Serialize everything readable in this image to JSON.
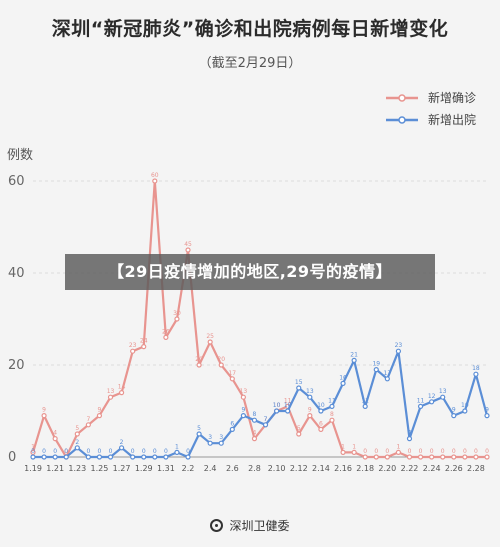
{
  "title": "深圳“新冠肺炎”确诊和出院病例每日新增变化",
  "subtitle": "（截至2月29日）",
  "banner": "【29日疫情增加的地区,29号的疫情】",
  "footer": "深圳卫健委",
  "chart_data": {
    "type": "line",
    "ylabel": "例数",
    "ylim": [
      0,
      60
    ],
    "yticks": [
      0,
      20,
      40,
      60
    ],
    "grid": true,
    "legend_position": "top-right",
    "x": [
      "1.19",
      "1.20",
      "1.21",
      "1.22",
      "1.23",
      "1.24",
      "1.25",
      "1.26",
      "1.27",
      "1.28",
      "1.29",
      "1.30",
      "1.31",
      "2.1",
      "2.2",
      "2.3",
      "2.4",
      "2.5",
      "2.6",
      "2.7",
      "2.8",
      "2.9",
      "2.10",
      "2.11",
      "2.12",
      "2.13",
      "2.14",
      "2.15",
      "2.16",
      "2.17",
      "2.18",
      "2.19",
      "2.20",
      "2.21",
      "2.22",
      "2.23",
      "2.24",
      "2.25",
      "2.26",
      "2.27",
      "2.28",
      "2.29"
    ],
    "xtick_labels": [
      "1.19",
      "1.21",
      "1.23",
      "1.25",
      "1.27",
      "1.29",
      "1.31",
      "2.2",
      "2.4",
      "2.6",
      "2.8",
      "2.10",
      "2.12",
      "2.14",
      "2.16",
      "2.18",
      "2.20",
      "2.22",
      "2.24",
      "2.26",
      "2.28"
    ],
    "series": [
      {
        "name": "新增确诊",
        "color": "#e8948f",
        "values": [
          1,
          9,
          4,
          0,
          5,
          7,
          9,
          13,
          14,
          23,
          24,
          60,
          26,
          30,
          45,
          20,
          25,
          20,
          17,
          13,
          4,
          7,
          10,
          11,
          5,
          9,
          6,
          8,
          1,
          1,
          0,
          0,
          0,
          1,
          0,
          0,
          0,
          0,
          0,
          0,
          0,
          0
        ]
      },
      {
        "name": "新增出院",
        "color": "#5b8ed6",
        "values": [
          0,
          0,
          0,
          0,
          2,
          0,
          0,
          0,
          2,
          0,
          0,
          0,
          0,
          1,
          0,
          5,
          3,
          3,
          6,
          9,
          8,
          7,
          10,
          10,
          15,
          13,
          10,
          11,
          16,
          21,
          11,
          19,
          17,
          23,
          4,
          11,
          12,
          13,
          9,
          10,
          18,
          9
        ]
      }
    ],
    "data_labels": {
      "新增确诊": [
        "1",
        "9",
        "4",
        "0",
        "5",
        "7",
        "9",
        "13",
        "14",
        "23",
        "24",
        "60",
        "26",
        "30",
        "45",
        "20",
        "25",
        "20",
        "17",
        "13",
        "4",
        "7",
        "10",
        "11",
        "5",
        "9",
        "6",
        "8",
        "1",
        "1",
        "0",
        "0",
        "0",
        "1",
        "0",
        "0",
        "0",
        "0",
        "0",
        "0",
        "0",
        "0"
      ],
      "新增出院": [
        "0",
        "0",
        "0",
        "0",
        "2",
        "0",
        "0",
        "0",
        "2",
        "0",
        "0",
        "0",
        "0",
        "1",
        "0",
        "5",
        "3",
        "3",
        "6",
        "9",
        "8",
        "7",
        "10",
        "10",
        "15",
        "13",
        "10",
        "11",
        "16",
        "21",
        "11",
        "19",
        "17",
        "23",
        "4",
        "11",
        "12",
        "13",
        "9",
        "10",
        "18",
        "9"
      ]
    }
  }
}
